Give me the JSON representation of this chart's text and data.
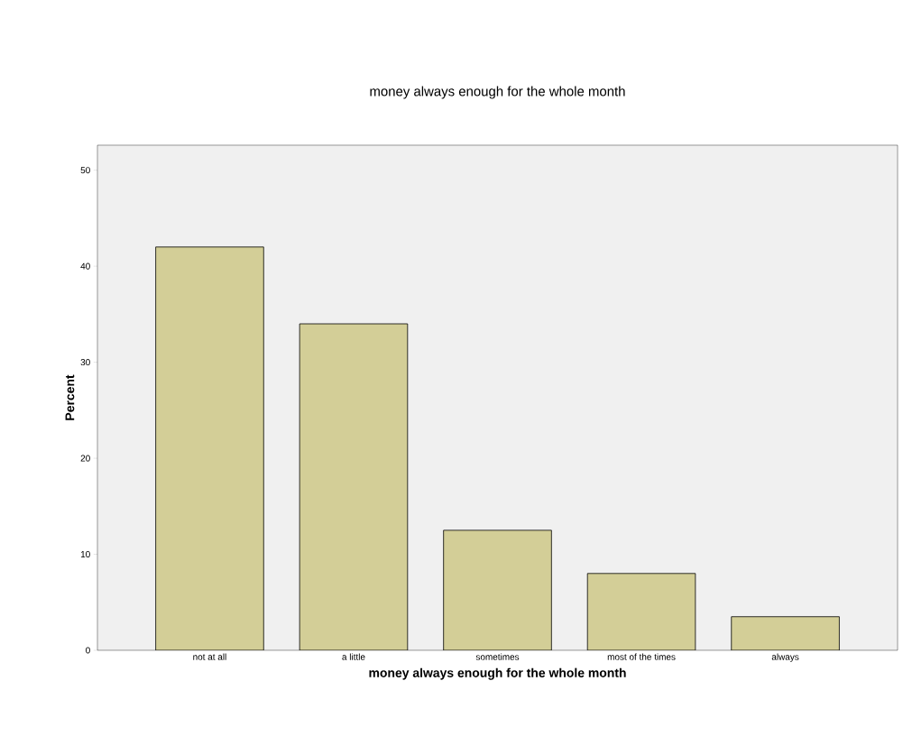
{
  "chart_data": {
    "type": "bar",
    "title": "money always enough for the whole month",
    "xlabel": "money always enough for the whole month",
    "ylabel": "Percent",
    "categories": [
      "not at all",
      "a little",
      "sometimes",
      "most of the times",
      "always"
    ],
    "values": [
      42.0,
      34.0,
      12.5,
      8.0,
      3.5
    ],
    "color": "#d3ce97",
    "ylim": [
      0,
      52.6
    ],
    "yticks": [
      0,
      10,
      20,
      30,
      40,
      50
    ],
    "grid": false
  }
}
